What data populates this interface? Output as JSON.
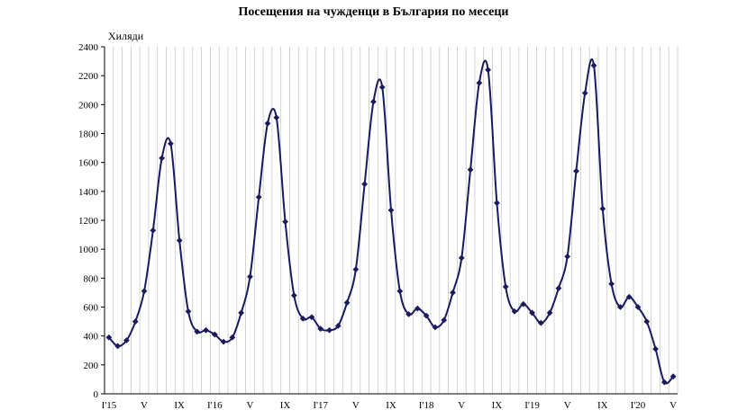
{
  "chart_data": {
    "type": "line",
    "title": "Посещения на чужденци в България по месеци",
    "ylabel": "Хиляди",
    "xlabel": "",
    "ylim": [
      0,
      2400
    ],
    "yticks": [
      0,
      200,
      400,
      600,
      800,
      1000,
      1200,
      1400,
      1600,
      1800,
      2000,
      2200,
      2400
    ],
    "grid": "vertical",
    "legend": "none",
    "line_color": "#1a1a5e",
    "x": [
      "I'15",
      "II'15",
      "III'15",
      "IV'15",
      "V'15",
      "VI'15",
      "VII'15",
      "VIII'15",
      "IX'15",
      "X'15",
      "XI'15",
      "XII'15",
      "I'16",
      "II'16",
      "III'16",
      "IV'16",
      "V'16",
      "VI'16",
      "VII'16",
      "VIII'16",
      "IX'16",
      "X'16",
      "XI'16",
      "XII'16",
      "I'17",
      "II'17",
      "III'17",
      "IV'17",
      "V'17",
      "VI'17",
      "VII'17",
      "VIII'17",
      "IX'17",
      "X'17",
      "XI'17",
      "XII'17",
      "I'18",
      "II'18",
      "III'18",
      "IV'18",
      "V'18",
      "VI'18",
      "VII'18",
      "VIII'18",
      "IX'18",
      "X'18",
      "XI'18",
      "XII'18",
      "I'19",
      "II'19",
      "III'19",
      "IV'19",
      "V'19",
      "VI'19",
      "VII'19",
      "VIII'19",
      "IX'19",
      "X'19",
      "XI'19",
      "XII'19",
      "I'20",
      "II'20",
      "III'20",
      "IV'20",
      "V'20"
    ],
    "xtick_labels": [
      {
        "index": 0,
        "label": "I'15"
      },
      {
        "index": 4,
        "label": "V"
      },
      {
        "index": 8,
        "label": "IX"
      },
      {
        "index": 12,
        "label": "I'16"
      },
      {
        "index": 16,
        "label": "V"
      },
      {
        "index": 20,
        "label": "IX"
      },
      {
        "index": 24,
        "label": "I'17"
      },
      {
        "index": 28,
        "label": "V"
      },
      {
        "index": 32,
        "label": "IX"
      },
      {
        "index": 36,
        "label": "I'18"
      },
      {
        "index": 40,
        "label": "V"
      },
      {
        "index": 44,
        "label": "IX"
      },
      {
        "index": 48,
        "label": "I'19"
      },
      {
        "index": 52,
        "label": "V"
      },
      {
        "index": 56,
        "label": "IX"
      },
      {
        "index": 60,
        "label": "I'20"
      },
      {
        "index": 64,
        "label": "V"
      }
    ],
    "series": [
      {
        "values": [
          390,
          330,
          370,
          500,
          710,
          1130,
          1630,
          1730,
          1060,
          570,
          430,
          440,
          410,
          360,
          390,
          560,
          810,
          1360,
          1870,
          1910,
          1190,
          680,
          520,
          530,
          450,
          440,
          470,
          630,
          860,
          1450,
          2020,
          2120,
          1270,
          710,
          550,
          590,
          540,
          460,
          510,
          700,
          940,
          1550,
          2150,
          2240,
          1320,
          740,
          570,
          620,
          560,
          490,
          560,
          730,
          950,
          1540,
          2080,
          2270,
          1280,
          760,
          600,
          670,
          600,
          500,
          310,
          80,
          120
        ]
      }
    ]
  }
}
